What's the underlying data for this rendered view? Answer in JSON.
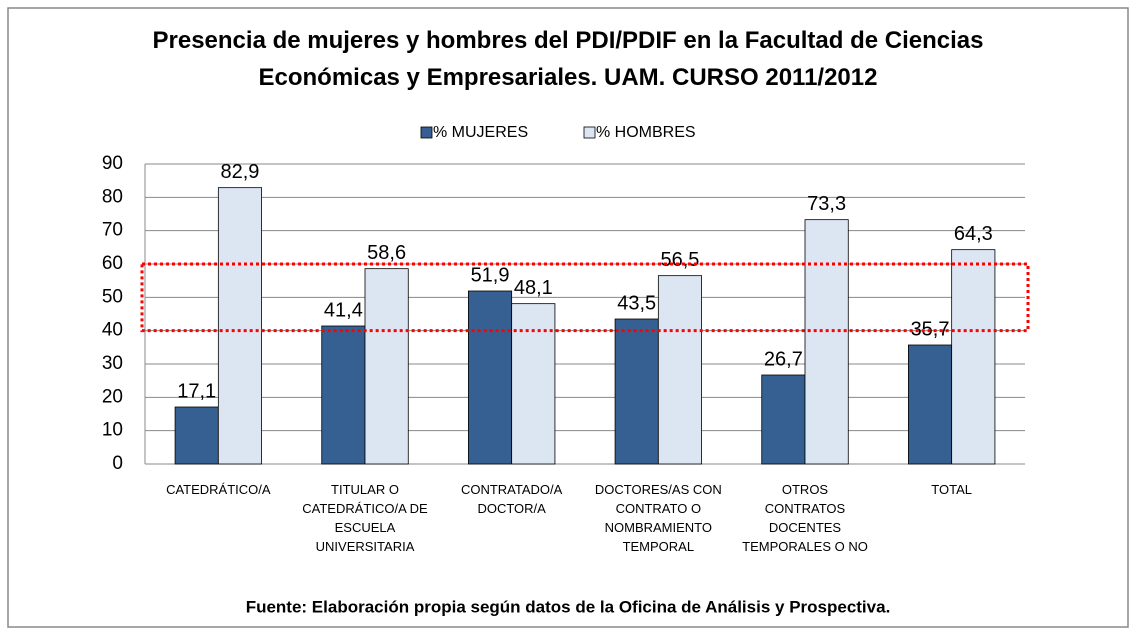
{
  "chart_data": {
    "type": "bar",
    "title": "Presencia de mujeres y hombres del PDI/PDIF en la Facultad de Ciencias Económicas y Empresariales. UAM. CURSO 2011/2012",
    "categories": [
      "CATEDRÁTICO/A",
      "TITULAR O CATEDRÁTICO/A DE ESCUELA UNIVERSITARIA",
      "CONTRATADO/A DOCTOR/A",
      "DOCTORES/AS CON CONTRATO O NOMBRAMIENTO TEMPORAL",
      "OTROS CONTRATOS DOCENTES TEMPORALES O NO",
      "TOTAL"
    ],
    "series": [
      {
        "name": "% MUJERES",
        "color": "#376092",
        "values": [
          17.1,
          41.4,
          51.9,
          43.5,
          26.7,
          35.7
        ],
        "value_labels": [
          "17,1",
          "41,4",
          "51,9",
          "43,5",
          "26,7",
          "35,7"
        ]
      },
      {
        "name": "% HOMBRES",
        "color": "#dce6f2",
        "values": [
          82.9,
          58.6,
          48.1,
          56.5,
          73.3,
          64.3
        ],
        "value_labels": [
          "82,9",
          "58,6",
          "48,1",
          "56,5",
          "73,3",
          "64,3"
        ]
      }
    ],
    "ylim": [
      0,
      90
    ],
    "yticks": [
      0,
      10,
      20,
      30,
      40,
      50,
      60,
      70,
      80,
      90
    ],
    "grid": true,
    "highlight_range": [
      40,
      60
    ],
    "highlight_color": "#ff0000",
    "legend": "top",
    "source": "Fuente: Elaboración propia según datos de la Oficina de Análisis y Prospectiva."
  }
}
